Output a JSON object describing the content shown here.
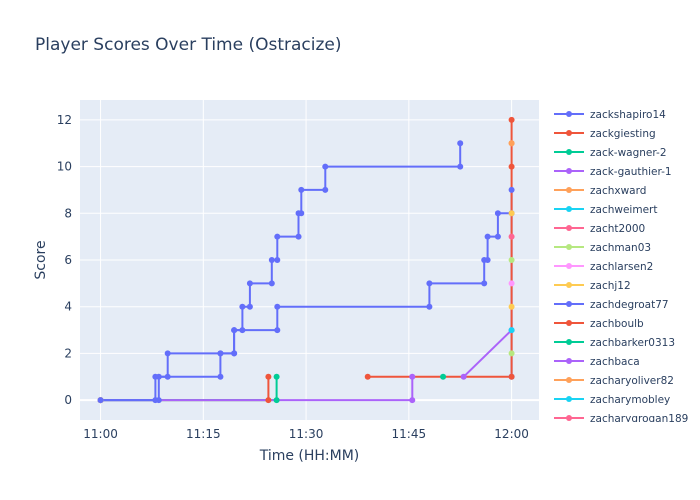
{
  "chart_data": {
    "type": "line",
    "line_shape": "step-after",
    "title": "Player Scores Over Time (Ostracize)",
    "xlabel": "Time (HH:MM)",
    "ylabel": "Score",
    "xlim": [
      "10:57",
      "12:04"
    ],
    "ylim": [
      -0.85,
      12.85
    ],
    "x_ticks": [
      "11:00",
      "11:15",
      "11:30",
      "11:45",
      "12:00"
    ],
    "y_ticks": [
      0,
      2,
      4,
      6,
      8,
      10,
      12
    ],
    "grid": true,
    "plot_background": "#e5ecf6",
    "legend_position": "right",
    "series": [
      {
        "name": "zackshapiro14",
        "color": "#636efa",
        "points": [
          [
            "11:00",
            0
          ],
          [
            "11:08.5",
            0
          ],
          [
            "11:08.5",
            1
          ],
          [
            "11:09.8",
            1
          ],
          [
            "11:09.8",
            2
          ],
          [
            "11:17.5",
            2
          ],
          [
            "11:19.5",
            2
          ],
          [
            "11:19.5",
            3
          ],
          [
            "11:20.7",
            3
          ],
          [
            "11:20.7",
            4
          ],
          [
            "11:21.8",
            4
          ],
          [
            "11:21.8",
            5
          ],
          [
            "11:25",
            5
          ],
          [
            "11:25",
            6
          ],
          [
            "11:25.8",
            6
          ],
          [
            "11:25.8",
            7
          ],
          [
            "11:28.9",
            7
          ],
          [
            "11:28.9",
            8
          ],
          [
            "11:29.3",
            8
          ],
          [
            "11:29.3",
            9
          ],
          [
            "11:32.8",
            9
          ],
          [
            "11:32.8",
            10
          ],
          [
            "11:52.5",
            10
          ],
          [
            "11:52.5",
            11
          ]
        ]
      },
      {
        "name": "zackgiesting",
        "color": "#ef553b",
        "points": [
          [
            "11:00",
            0
          ],
          [
            "11:24.5",
            0
          ],
          [
            "11:24.5",
            1
          ]
        ]
      },
      {
        "name": "zack-wagner-2",
        "color": "#00cc96",
        "points": [
          [
            "11:00",
            0
          ],
          [
            "11:25.7",
            0
          ],
          [
            "11:25.7",
            1
          ]
        ]
      },
      {
        "name": "zack-gauthier-1",
        "color": "#ab63fa",
        "points": [
          [
            "11:00",
            0
          ],
          [
            "11:45.5",
            0
          ],
          [
            "11:45.5",
            1
          ]
        ]
      },
      {
        "name": "zachxward",
        "color": "#ffa15a",
        "points": [
          [
            "11:00",
            0
          ]
        ]
      },
      {
        "name": "zachweimert",
        "color": "#19d3f3",
        "points": [
          [
            "11:00",
            0
          ]
        ]
      },
      {
        "name": "zacht2000",
        "color": "#ff6692",
        "points": [
          [
            "11:00",
            0
          ]
        ]
      },
      {
        "name": "zachman03",
        "color": "#b6e880",
        "points": [
          [
            "11:00",
            0
          ]
        ]
      },
      {
        "name": "zachlarsen2",
        "color": "#ff97ff",
        "points": [
          [
            "11:00",
            0
          ]
        ]
      },
      {
        "name": "zachj12",
        "color": "#fecb52",
        "points": [
          [
            "11:00",
            0
          ]
        ]
      },
      {
        "name": "zachdegroat77",
        "color": "#636efa",
        "points": [
          [
            "11:00",
            0
          ],
          [
            "11:08",
            0
          ],
          [
            "11:08",
            1
          ],
          [
            "11:17.5",
            1
          ],
          [
            "11:17.5",
            2
          ],
          [
            "11:19.5",
            2
          ],
          [
            "11:19.5",
            3
          ],
          [
            "11:25.8",
            3
          ],
          [
            "11:25.8",
            4
          ],
          [
            "11:48",
            4
          ],
          [
            "11:48",
            5
          ],
          [
            "11:56",
            5
          ],
          [
            "11:56",
            6
          ],
          [
            "11:56.5",
            6
          ],
          [
            "11:56.5",
            7
          ],
          [
            "11:58",
            7
          ],
          [
            "11:58",
            8
          ],
          [
            "12:00",
            8
          ],
          [
            "12:00",
            9
          ],
          [
            "12:00",
            1
          ]
        ]
      },
      {
        "name": "zachboulb",
        "color": "#ef553b",
        "points": [
          [
            "11:39",
            1
          ],
          [
            "12:00",
            1
          ],
          [
            "12:00",
            10
          ],
          [
            "12:00",
            12
          ]
        ]
      },
      {
        "name": "zachbarker0313",
        "color": "#00cc96",
        "points": [
          [
            "11:50",
            1
          ]
        ]
      },
      {
        "name": "zachbaca",
        "color": "#ab63fa",
        "points": [
          [
            "11:53",
            1
          ],
          [
            "12:00",
            3
          ]
        ]
      },
      {
        "name": "zacharyoliver82",
        "color": "#ffa15a",
        "points": [
          [
            "12:00",
            11
          ]
        ]
      },
      {
        "name": "zacharymobley",
        "color": "#19d3f3",
        "points": [
          [
            "12:00",
            3
          ]
        ]
      },
      {
        "name": "zacharygrogan189",
        "color": "#ff6692",
        "points": [
          [
            "12:00",
            7
          ]
        ]
      }
    ],
    "extra_markers": [
      {
        "x": "12:00",
        "y": 2,
        "color": "#b6e880"
      },
      {
        "x": "12:00",
        "y": 4,
        "color": "#fecb52"
      },
      {
        "x": "12:00",
        "y": 5,
        "color": "#ff97ff"
      },
      {
        "x": "12:00",
        "y": 6,
        "color": "#b6e880"
      },
      {
        "x": "12:00",
        "y": 8,
        "color": "#fecb52"
      },
      {
        "x": "12:00",
        "y": 11,
        "color": "#ffa15a"
      }
    ]
  }
}
